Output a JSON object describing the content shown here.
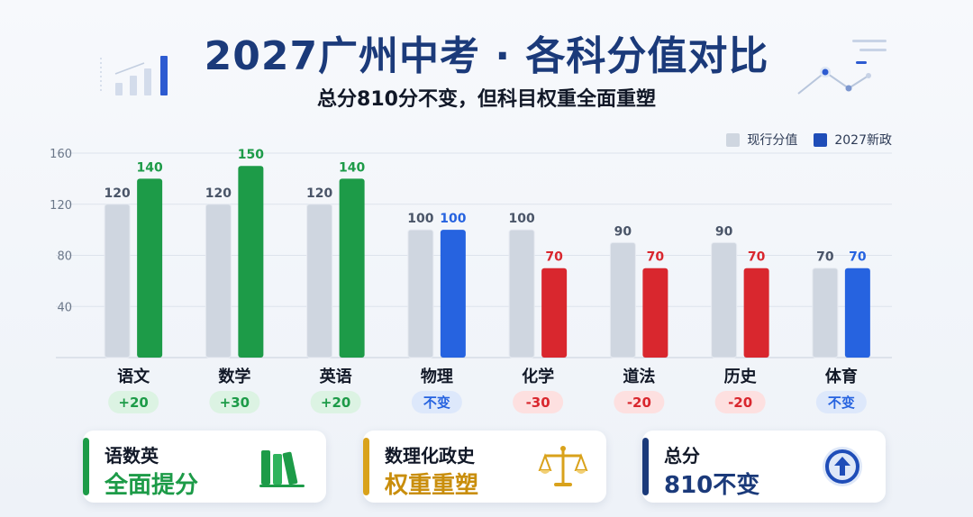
{
  "header": {
    "title": "2027广州中考 · 各科分值对比",
    "subtitle": "总分810分不变，但科目权重全面重塑"
  },
  "legend": {
    "current_label": "现行分值",
    "new_label": "2027新政"
  },
  "colors": {
    "current": "#cfd6e0",
    "increase": "#1d9b48",
    "same": "#2663e0",
    "decrease": "#d9272e",
    "increase_badge_bg": "#dcf3e3",
    "same_badge_bg": "#dde8fb",
    "decrease_badge_bg": "#fde0e0",
    "title": "#1b3a7a"
  },
  "chart_data": {
    "type": "bar",
    "categories": [
      "语文",
      "数学",
      "英语",
      "物理",
      "化学",
      "道法",
      "历史",
      "体育"
    ],
    "series": [
      {
        "name": "现行分值",
        "values": [
          120,
          120,
          120,
          100,
          100,
          90,
          90,
          70
        ]
      },
      {
        "name": "2027新政",
        "values": [
          140,
          150,
          140,
          100,
          70,
          70,
          70,
          70
        ]
      }
    ],
    "changes": [
      "+20",
      "+30",
      "+20",
      "不变",
      "-30",
      "-20",
      "-20",
      "不变"
    ],
    "change_types": [
      "increase",
      "increase",
      "increase",
      "same",
      "decrease",
      "decrease",
      "decrease",
      "same"
    ],
    "yticks": [
      40,
      80,
      120,
      160
    ],
    "ylim": [
      0,
      160
    ],
    "grid": true,
    "legend_position": "top-right"
  },
  "cards": [
    {
      "line1": "语数英",
      "line2": "全面提分",
      "accent": "#1d9b48",
      "icon": "books-icon"
    },
    {
      "line1": "数理化政史",
      "line2": "权重重塑",
      "accent": "#d9a21b",
      "icon": "balance-scale-icon"
    },
    {
      "line1": "总分",
      "line2": "810不变",
      "accent": "#1b3a7a",
      "icon": "circle-arrow-up-icon"
    }
  ]
}
